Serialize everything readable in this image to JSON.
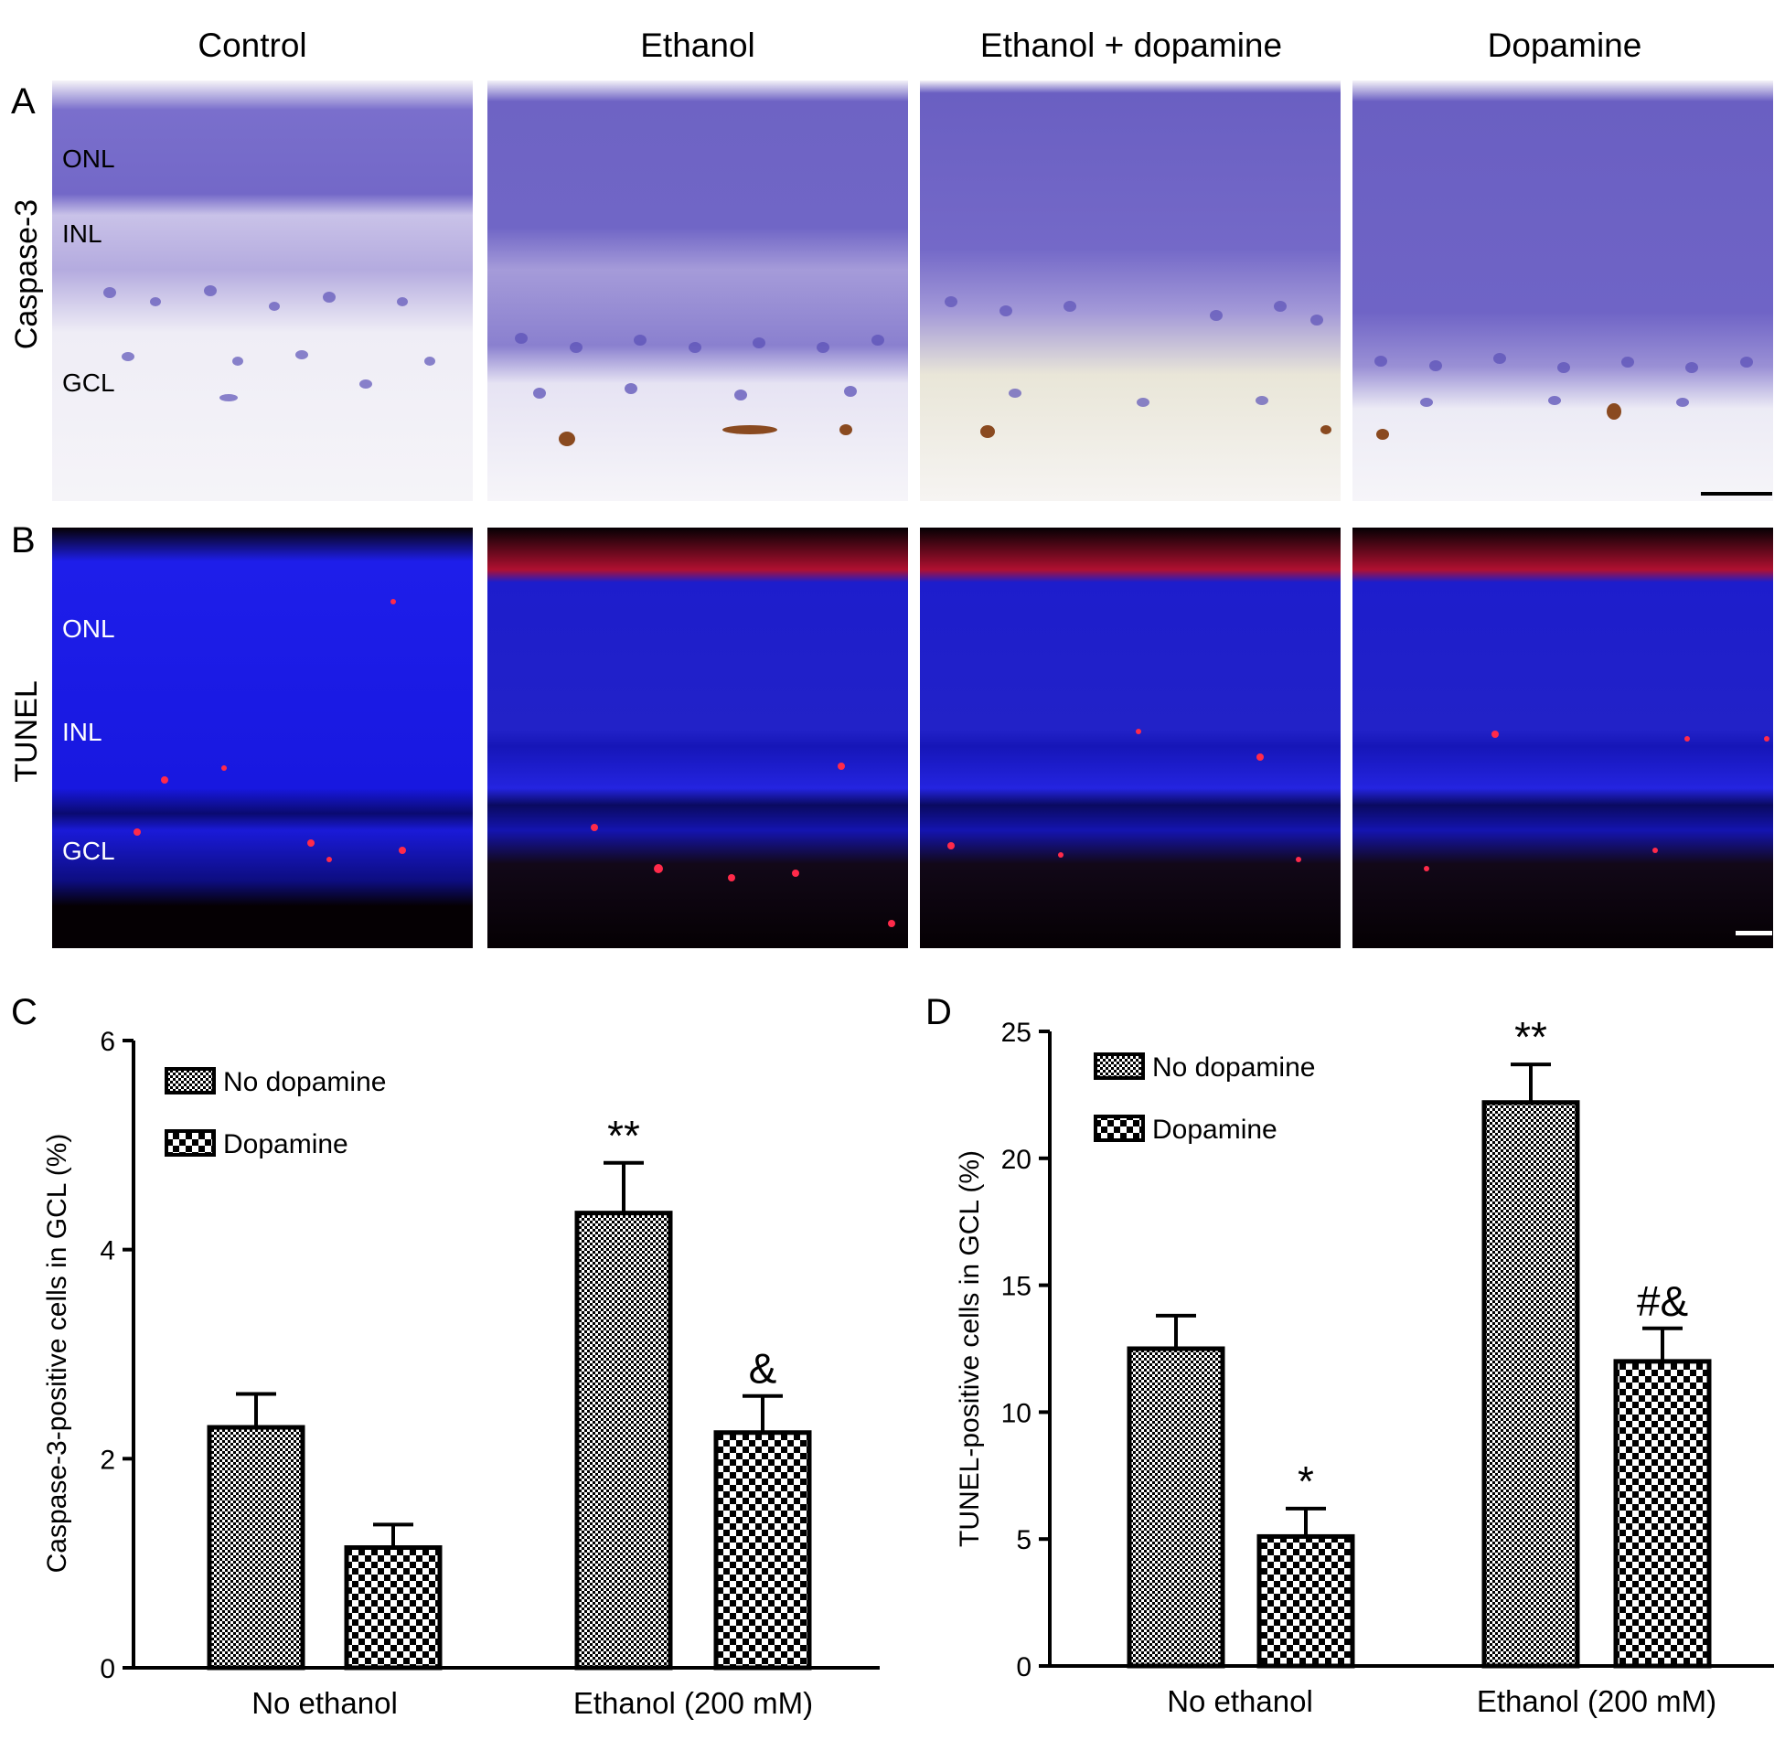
{
  "figure": {
    "column_headers": [
      "Control",
      "Ethanol",
      "Ethanol + dopamine",
      "Dopamine"
    ],
    "panel_letters": [
      "A",
      "B",
      "C",
      "D"
    ],
    "row_labels": [
      "Caspase-3",
      "TUNEL"
    ],
    "layer_labels": [
      "ONL",
      "INL",
      "GCL"
    ]
  },
  "colors": {
    "he_background": "#f6f4f8",
    "he_nuclei": "#6a5cc2",
    "he_dense": "#5c52b8",
    "he_brown": "#8a4a20",
    "fluor_background": "#050003",
    "fluor_blue": "#1a1ae6",
    "fluor_red": "#ff2a4a",
    "bar_outline": "#000000"
  },
  "chart_data": [
    {
      "type": "bar",
      "panel": "C",
      "categories": [
        "No ethanol",
        "Ethanol (200 mM)"
      ],
      "ylabel": "Caspase-3-positive cells in GCL (%)",
      "ylim": [
        0,
        6
      ],
      "yticks": [
        0,
        2,
        4,
        6
      ],
      "legend_placement": "top-left",
      "series": [
        {
          "name": "No dopamine",
          "pattern": "fine-checker",
          "values": [
            2.3,
            4.35
          ],
          "errors": [
            0.32,
            0.48
          ]
        },
        {
          "name": "Dopamine",
          "pattern": "coarse-checker",
          "values": [
            1.15,
            2.25
          ],
          "errors": [
            0.22,
            0.35
          ]
        }
      ],
      "annotations": [
        {
          "category": 1,
          "series": 0,
          "text": "**"
        },
        {
          "category": 1,
          "series": 1,
          "text": "&"
        }
      ]
    },
    {
      "type": "bar",
      "panel": "D",
      "categories": [
        "No ethanol",
        "Ethanol (200 mM)"
      ],
      "ylabel": "TUNEL-positive cells in GCL (%)",
      "ylim": [
        0,
        25
      ],
      "yticks": [
        0,
        5,
        10,
        15,
        20,
        25
      ],
      "legend_placement": "top-left",
      "series": [
        {
          "name": "No dopamine",
          "pattern": "fine-checker",
          "values": [
            12.5,
            22.2
          ],
          "errors": [
            1.3,
            1.5
          ]
        },
        {
          "name": "Dopamine",
          "pattern": "coarse-checker",
          "values": [
            5.1,
            12.0
          ],
          "errors": [
            1.1,
            1.3
          ]
        }
      ],
      "annotations": [
        {
          "category": 0,
          "series": 1,
          "text": "*"
        },
        {
          "category": 1,
          "series": 0,
          "text": "**"
        },
        {
          "category": 1,
          "series": 1,
          "text": "#&"
        }
      ]
    }
  ]
}
